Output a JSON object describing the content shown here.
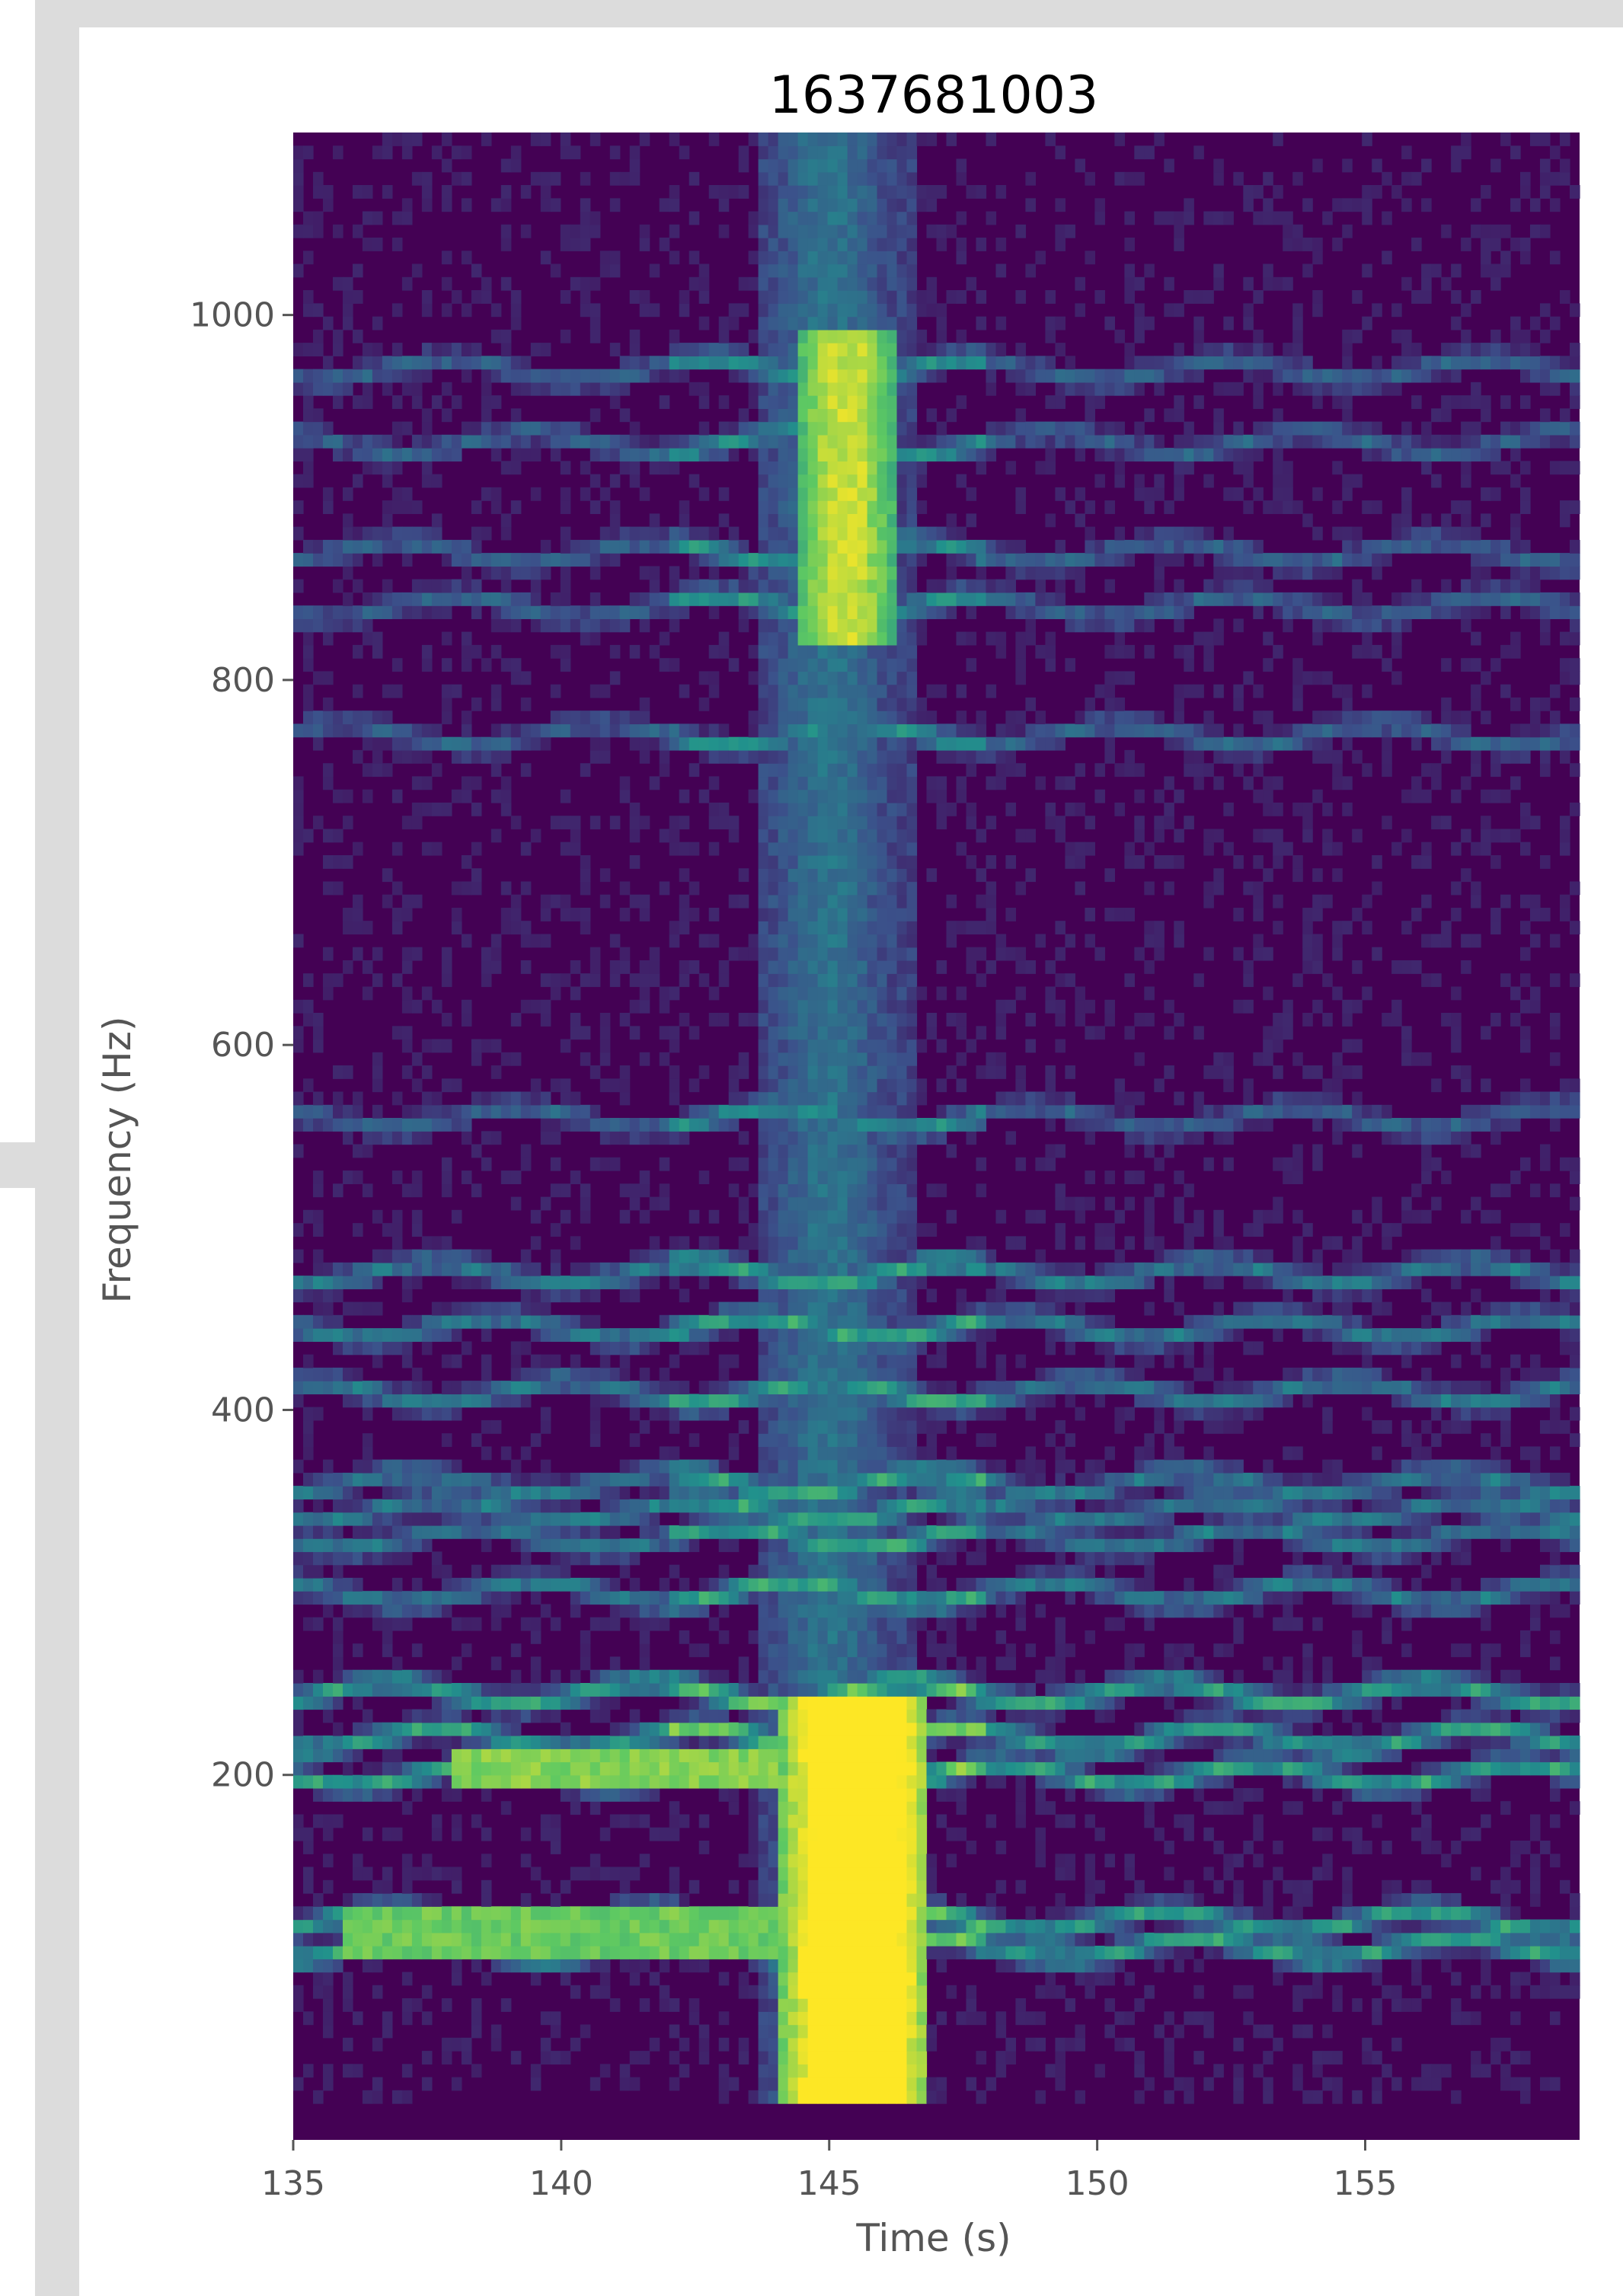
{
  "chart_data": {
    "type": "heatmap",
    "title": "1637681003",
    "xlabel": "Time (s)",
    "ylabel": "Frequency (Hz)",
    "xlim": [
      135,
      159
    ],
    "ylim": [
      0,
      1100
    ],
    "xticks": [
      135,
      140,
      145,
      150,
      155
    ],
    "yticks": [
      200,
      400,
      600,
      800,
      1000
    ],
    "colormap": "viridis",
    "background_color": "#440154",
    "harmonic_bands_hz": [
      105,
      120,
      200,
      220,
      245,
      300,
      330,
      345,
      360,
      410,
      445,
      475,
      560,
      770,
      840,
      870,
      930,
      970
    ],
    "hot_regions": [
      {
        "time": [
          144.1,
          146.9
        ],
        "freq": [
          20,
          240
        ],
        "intensity": 1.0
      },
      {
        "time": [
          144.4,
          146.2
        ],
        "freq": [
          820,
          990
        ],
        "intensity": 0.85
      }
    ],
    "grid": false,
    "legend": "none"
  }
}
